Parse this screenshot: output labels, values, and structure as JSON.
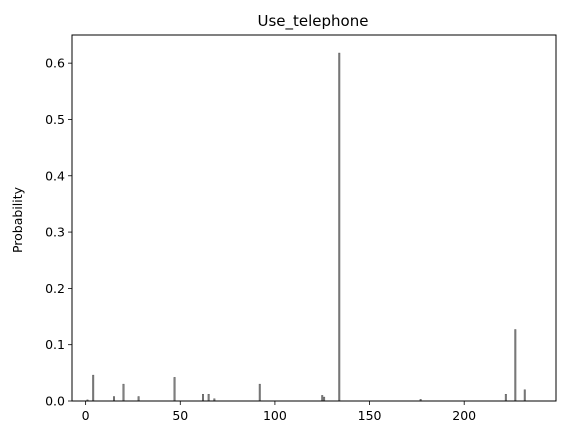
{
  "chart_data": {
    "type": "bar",
    "title": "Use_telephone",
    "xlabel": "",
    "ylabel": "Probability",
    "xlim": [
      -7.2,
      248.5
    ],
    "ylim": [
      0,
      0.65
    ],
    "xticks": [
      0,
      50,
      100,
      150,
      200
    ],
    "xtick_labels": [
      "0",
      "50",
      "100",
      "150",
      "200"
    ],
    "yticks": [
      0.0,
      0.1,
      0.2,
      0.3,
      0.4,
      0.5,
      0.6
    ],
    "ytick_labels": [
      "0.0",
      "0.1",
      "0.2",
      "0.3",
      "0.4",
      "0.5",
      "0.6"
    ],
    "grid": false,
    "bar_color": "#808080",
    "bar_edge_color": "#4d4d4d",
    "x": [
      1,
      4,
      15,
      20,
      28,
      47,
      62,
      65,
      68,
      92,
      125,
      126,
      134,
      177,
      222,
      227,
      232
    ],
    "values": [
      0.002,
      0.046,
      0.008,
      0.03,
      0.008,
      0.042,
      0.012,
      0.012,
      0.004,
      0.03,
      0.01,
      0.007,
      0.618,
      0.003,
      0.012,
      0.127,
      0.02
    ]
  }
}
